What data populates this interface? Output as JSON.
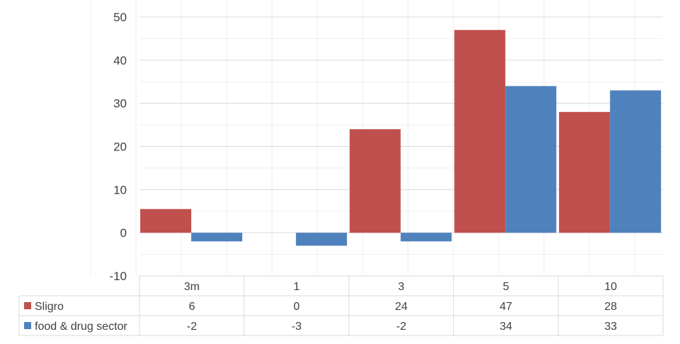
{
  "chart_data": {
    "type": "bar",
    "categories": [
      "3m",
      "1",
      "3",
      "5",
      "10"
    ],
    "series": [
      {
        "name": "Sligro",
        "values": [
          5.5,
          0,
          24,
          47,
          28
        ],
        "table_values": [
          "6",
          "0",
          "24",
          "47",
          "28"
        ],
        "color": "#c0504d"
      },
      {
        "name": "food & drug sector",
        "values": [
          -2,
          -3,
          -2,
          34,
          33
        ],
        "table_values": [
          "-2",
          "-3",
          "-2",
          "34",
          "33"
        ],
        "color": "#4f81bd"
      }
    ],
    "ylim": [
      -10,
      50
    ],
    "yticks": [
      "-10",
      "0",
      "10",
      "20",
      "30",
      "40",
      "50"
    ],
    "grid": true,
    "legend": "data-table"
  }
}
